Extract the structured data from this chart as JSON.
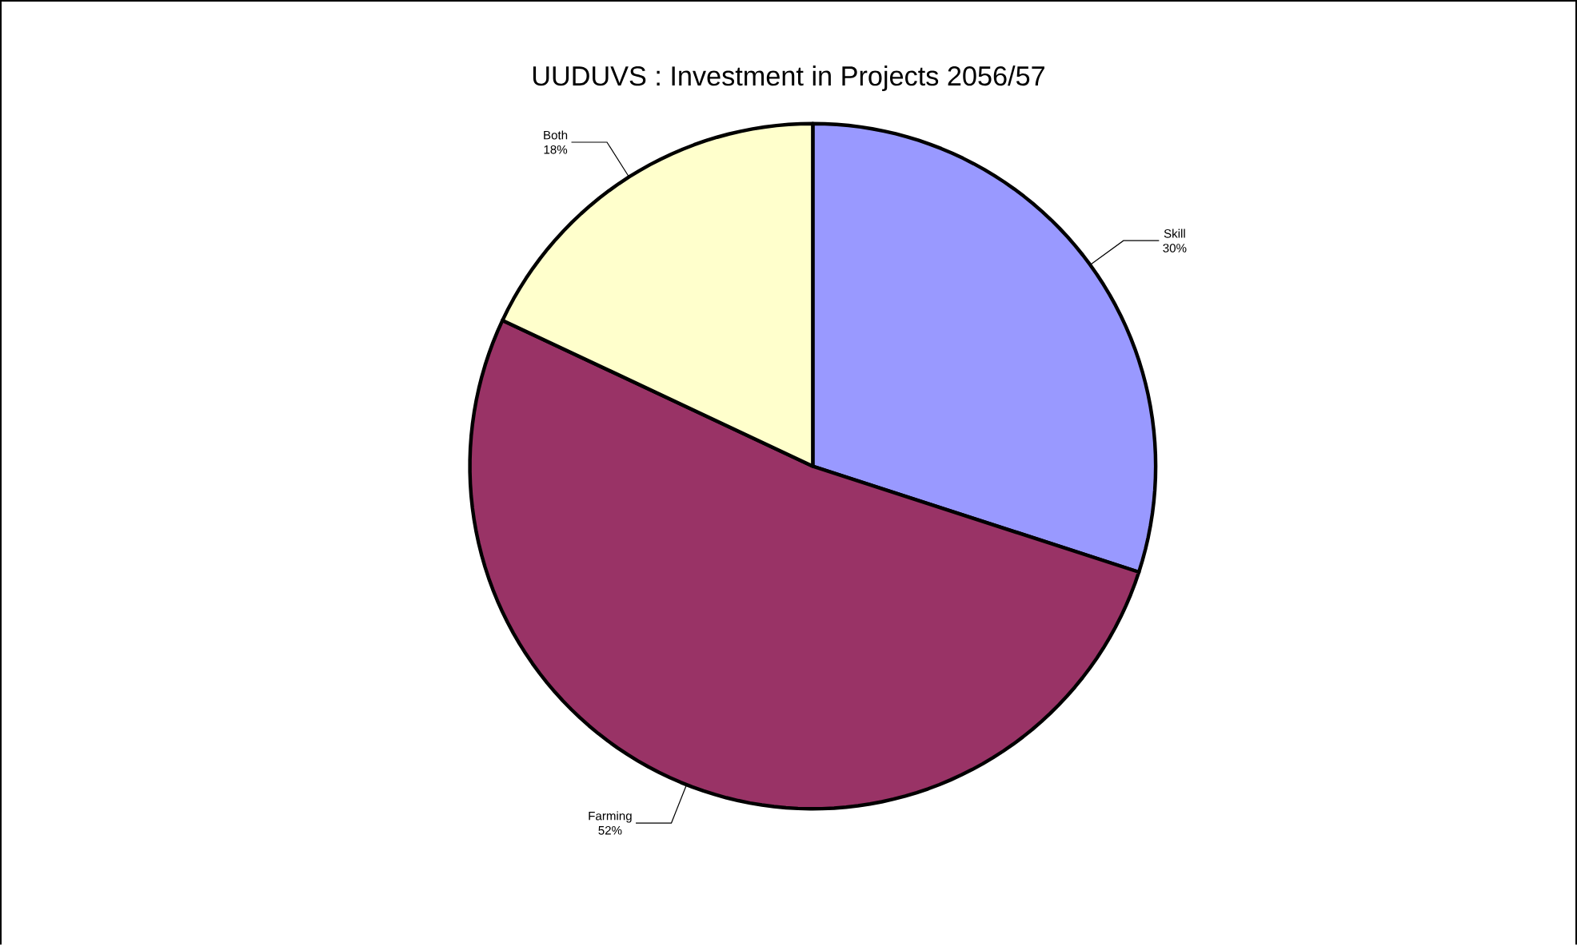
{
  "chart_data": {
    "type": "pie",
    "title": "UUDUVS : Investment in Projects 2056/57",
    "categories": [
      "Skill",
      "Farming",
      "Both"
    ],
    "values": [
      30,
      52,
      18
    ],
    "value_labels": [
      "30%",
      "52%",
      "18%"
    ],
    "colors": [
      "#9999ff",
      "#993366",
      "#ffffcc"
    ]
  }
}
